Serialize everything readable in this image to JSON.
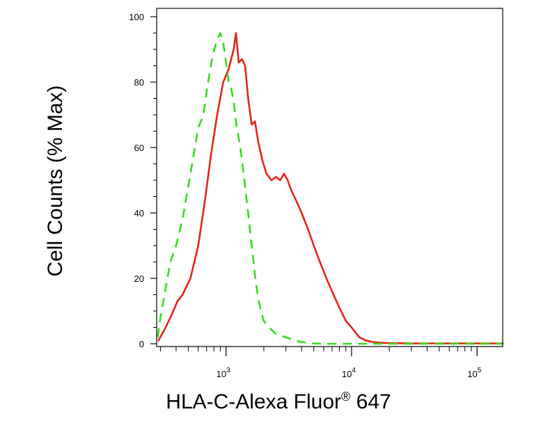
{
  "chart_data": {
    "type": "line",
    "xlabel": "HLA-C-Alexa Fluor",
    "xlabel_mark": "®",
    "xlabel_suffix": " 647",
    "ylabel": "Cell Counts (% Max)",
    "xscale": "log",
    "xlim": [
      280,
      160000
    ],
    "ylim": [
      0,
      100
    ],
    "x_ticks": [
      {
        "value": 1000,
        "base": "10",
        "exp": "3"
      },
      {
        "value": 10000,
        "base": "10",
        "exp": "4"
      },
      {
        "value": 100000,
        "base": "10",
        "exp": "5"
      }
    ],
    "y_ticks": [
      0,
      20,
      40,
      60,
      80,
      100
    ],
    "grid": false,
    "series": [
      {
        "color": "#e8221b",
        "style": "solid",
        "x": [
          290,
          330,
          370,
          410,
          450,
          520,
          600,
          680,
          760,
          850,
          950,
          1050,
          1150,
          1200,
          1260,
          1340,
          1420,
          1500,
          1600,
          1700,
          1800,
          1950,
          2100,
          2300,
          2500,
          2700,
          2900,
          3100,
          3300,
          3600,
          4000,
          4500,
          5000,
          5600,
          6300,
          7000,
          8000,
          9000,
          10000,
          11500,
          13000,
          15000,
          17000,
          20000,
          30000,
          160000
        ],
        "y": [
          1,
          5,
          9,
          13,
          15,
          20,
          30,
          44,
          58,
          70,
          80,
          84,
          90,
          95,
          86,
          87,
          85,
          75,
          67,
          68,
          62,
          56,
          52,
          50,
          51,
          50,
          52,
          50,
          47,
          44,
          40,
          35,
          30,
          25,
          20,
          16,
          11,
          7,
          5,
          2,
          1,
          0.5,
          0.3,
          0.2,
          0.1,
          0.1
        ]
      },
      {
        "color": "#33dd1a",
        "style": "dashed",
        "x": [
          285,
          300,
          330,
          360,
          400,
          450,
          520,
          600,
          660,
          720,
          780,
          850,
          900,
          950,
          1000,
          1050,
          1100,
          1150,
          1200,
          1300,
          1400,
          1500,
          1600,
          1700,
          1800,
          1900,
          2000,
          2200,
          2500,
          3000,
          3500,
          4000,
          4500,
          5000,
          6000,
          8000,
          12000,
          20000,
          160000
        ],
        "y": [
          2,
          8,
          17,
          25,
          30,
          38,
          52,
          66,
          70,
          80,
          88,
          93,
          95,
          92,
          86,
          80,
          78,
          74,
          68,
          60,
          50,
          40,
          30,
          21,
          14,
          10,
          7,
          5,
          3,
          2,
          1,
          0.5,
          0.3,
          0.1,
          0,
          0,
          0,
          0,
          0
        ]
      }
    ]
  }
}
